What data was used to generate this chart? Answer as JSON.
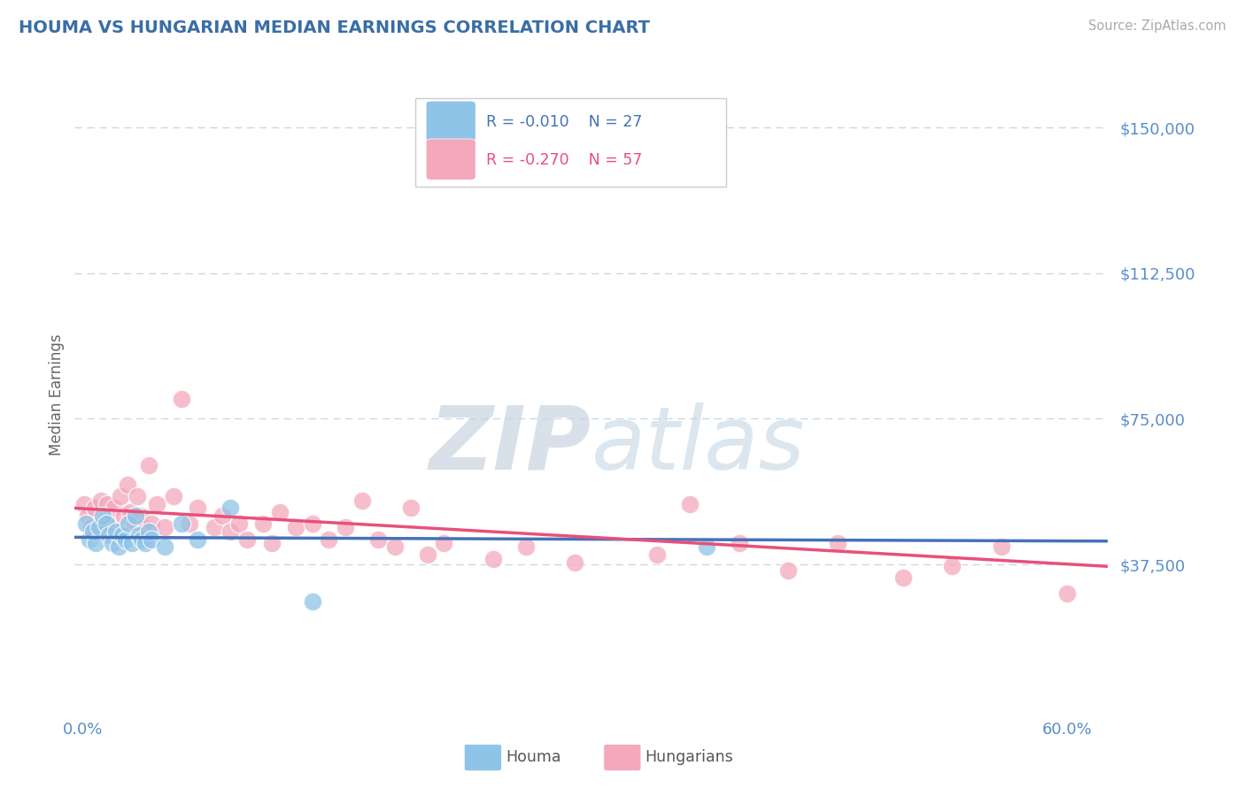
{
  "title": "HOUMA VS HUNGARIAN MEDIAN EARNINGS CORRELATION CHART",
  "source": "Source: ZipAtlas.com",
  "ylabel": "Median Earnings",
  "ylim": [
    0,
    162500
  ],
  "xlim": [
    -0.005,
    0.625
  ],
  "yticks": [
    37500,
    75000,
    112500,
    150000
  ],
  "ytick_labels": [
    "$37,500",
    "$75,000",
    "$112,500",
    "$150,000"
  ],
  "xtick_positions": [
    0.0,
    0.1,
    0.2,
    0.3,
    0.4,
    0.5,
    0.6
  ],
  "xtick_labels": [
    "0.0%",
    "",
    "",
    "",
    "",
    "",
    "60.0%"
  ],
  "houma_R": -0.01,
  "houma_N": 27,
  "hungarian_R": -0.27,
  "hungarian_N": 57,
  "houma_color": "#8ec4e8",
  "hungarian_color": "#f4a8bc",
  "houma_line_color": "#4472b8",
  "hungarian_line_color": "#e8507a",
  "title_color": "#3a6ea5",
  "axis_label_color": "#5a8fc8",
  "tick_color": "#888888",
  "grid_color": "#c8d8e8",
  "background_color": "#ffffff",
  "legend_text_color_houma": "#4472b8",
  "legend_text_color_hung": "#e8507a",
  "houma_line_y0": 44500,
  "houma_line_y1": 43500,
  "hungarian_line_y0": 52000,
  "hungarian_line_y1": 37000,
  "houma_x": [
    0.002,
    0.004,
    0.006,
    0.008,
    0.01,
    0.012,
    0.014,
    0.016,
    0.018,
    0.02,
    0.022,
    0.024,
    0.026,
    0.028,
    0.03,
    0.032,
    0.034,
    0.036,
    0.038,
    0.04,
    0.042,
    0.05,
    0.06,
    0.07,
    0.09,
    0.14,
    0.38
  ],
  "houma_y": [
    48000,
    44000,
    46000,
    43000,
    47000,
    50000,
    48000,
    45000,
    43000,
    46000,
    42000,
    45000,
    44000,
    48000,
    43000,
    50000,
    45000,
    44000,
    43000,
    46000,
    44000,
    42000,
    48000,
    44000,
    52000,
    28000,
    42000
  ],
  "hungarian_x": [
    0.001,
    0.003,
    0.005,
    0.007,
    0.009,
    0.011,
    0.013,
    0.015,
    0.017,
    0.019,
    0.021,
    0.023,
    0.025,
    0.027,
    0.029,
    0.031,
    0.033,
    0.035,
    0.037,
    0.04,
    0.042,
    0.045,
    0.05,
    0.055,
    0.06,
    0.065,
    0.07,
    0.08,
    0.085,
    0.09,
    0.095,
    0.1,
    0.11,
    0.115,
    0.12,
    0.13,
    0.14,
    0.15,
    0.16,
    0.17,
    0.18,
    0.19,
    0.2,
    0.21,
    0.22,
    0.25,
    0.27,
    0.3,
    0.35,
    0.37,
    0.4,
    0.43,
    0.46,
    0.5,
    0.53,
    0.56,
    0.6
  ],
  "hungarian_y": [
    53000,
    50000,
    47000,
    52000,
    46000,
    54000,
    49000,
    53000,
    48000,
    52000,
    46000,
    55000,
    50000,
    58000,
    51000,
    47000,
    55000,
    50000,
    47000,
    63000,
    48000,
    53000,
    47000,
    55000,
    80000,
    48000,
    52000,
    47000,
    50000,
    46000,
    48000,
    44000,
    48000,
    43000,
    51000,
    47000,
    48000,
    44000,
    47000,
    54000,
    44000,
    42000,
    52000,
    40000,
    43000,
    39000,
    42000,
    38000,
    40000,
    53000,
    43000,
    36000,
    43000,
    34000,
    37000,
    42000,
    30000
  ],
  "watermark_zip_color": "#c8d4e0",
  "watermark_atlas_color": "#b8cfe0"
}
